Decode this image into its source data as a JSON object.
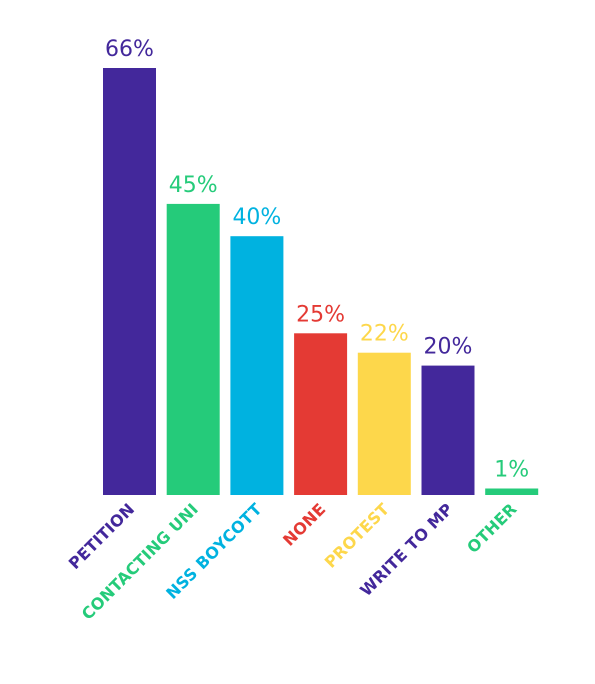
{
  "chart_data": {
    "type": "bar",
    "categories": [
      "PETITION",
      "CONTACTING UNI",
      "NSS BOYCOTT",
      "NONE",
      "PROTEST",
      "WRITE TO MP",
      "OTHER"
    ],
    "values": [
      66,
      45,
      40,
      25,
      22,
      20,
      1
    ],
    "value_labels": [
      "66%",
      "45%",
      "40%",
      "25%",
      "22%",
      "20%",
      "1%"
    ],
    "colors": [
      "#43289b",
      "#25cb7a",
      "#00b2e0",
      "#e43a34",
      "#fdd74b",
      "#43289b",
      "#25cb7a"
    ],
    "ylim": [
      0,
      66
    ],
    "grid": false,
    "legend": "none"
  }
}
